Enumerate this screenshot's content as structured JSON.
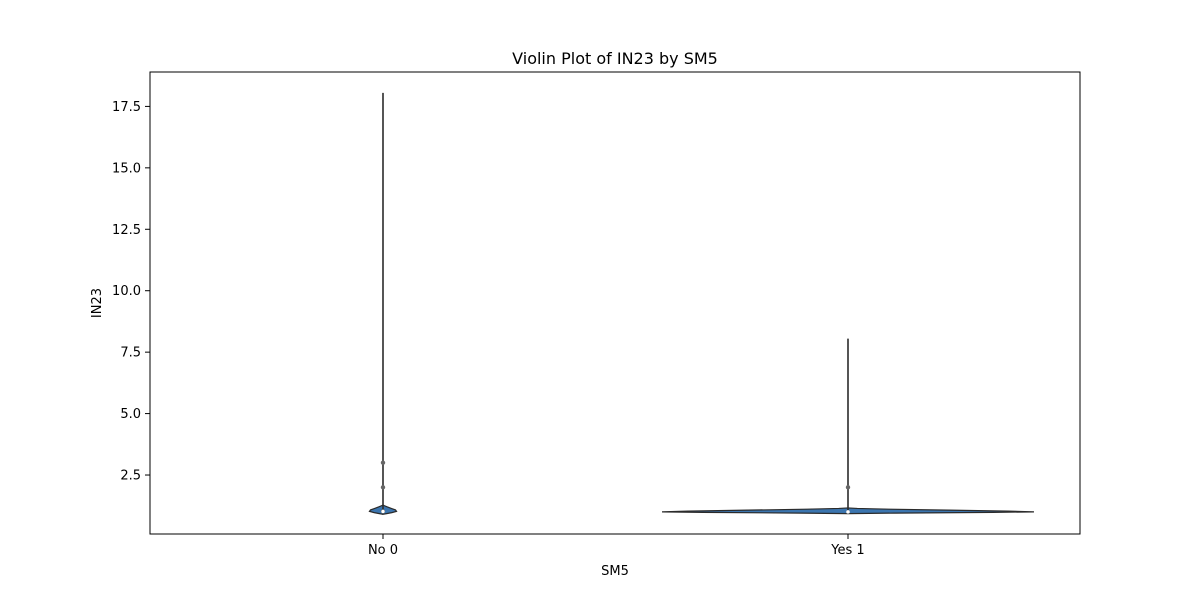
{
  "chart_data": {
    "type": "violin",
    "title": "Violin Plot of IN23 by SM5",
    "xlabel": "SM5",
    "ylabel": "IN23",
    "categories": [
      "No 0",
      "Yes 1"
    ],
    "ylim": [
      0.1,
      18.9
    ],
    "yticks": [
      2.5,
      5.0,
      7.5,
      10.0,
      12.5,
      15.0,
      17.5
    ],
    "ytick_labels": [
      "2.5",
      "5.0",
      "7.5",
      "10.0",
      "12.5",
      "15.0",
      "17.5"
    ],
    "grid": false,
    "legend": "none",
    "colors": {
      "violin_fill": "#3b75af",
      "violin_edge": "#2b2b2b",
      "whisker": "#2b2b2b",
      "point": "#666666",
      "axis": "#000000"
    },
    "violins": [
      {
        "category": "No 0",
        "min": 0.93,
        "q1": 0.98,
        "median": 1.02,
        "q3": 1.08,
        "max": 18.05,
        "points": [
          2.0,
          3.0
        ],
        "density": [
          [
            0.9,
            0.0
          ],
          [
            0.93,
            0.14
          ],
          [
            0.97,
            0.34
          ],
          [
            1.02,
            0.52
          ],
          [
            1.08,
            0.48
          ],
          [
            1.14,
            0.32
          ],
          [
            1.2,
            0.17
          ],
          [
            1.25,
            0.06
          ],
          [
            1.28,
            0.0
          ]
        ]
      },
      {
        "category": "Yes 1",
        "min": 0.98,
        "q1": 0.99,
        "median": 1.0,
        "q3": 1.02,
        "max": 8.05,
        "points": [
          2.0
        ],
        "density": [
          [
            0.93,
            0.0
          ],
          [
            0.95,
            0.25
          ],
          [
            0.98,
            0.78
          ],
          [
            1.0,
            1.0
          ],
          [
            1.03,
            0.86
          ],
          [
            1.07,
            0.54
          ],
          [
            1.11,
            0.22
          ],
          [
            1.14,
            0.05
          ],
          [
            1.16,
            0.0
          ]
        ]
      }
    ]
  }
}
